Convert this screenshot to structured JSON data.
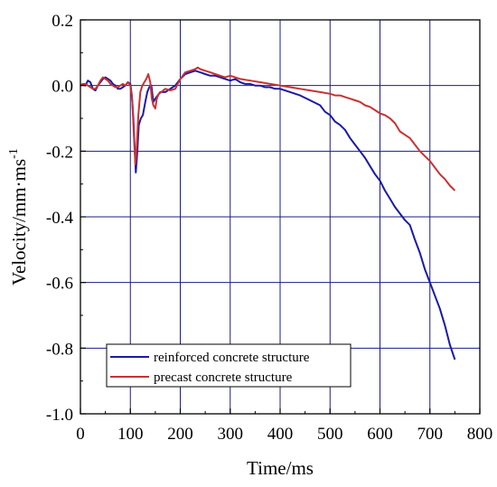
{
  "chart_data": {
    "type": "line",
    "xlabel": "Time/ms",
    "ylabel": "Velocity/mm·ms",
    "ylabel_superscript": "-1",
    "xlim": [
      0,
      800
    ],
    "ylim": [
      -1.0,
      0.2
    ],
    "x_ticks": [
      "0",
      "100",
      "200",
      "300",
      "400",
      "500",
      "600",
      "700",
      "800"
    ],
    "y_ticks": [
      "0.2",
      "0.0",
      "-0.2",
      "-0.4",
      "-0.6",
      "-0.8",
      "-1.0"
    ],
    "grid": true,
    "legend_position": "bottom-left",
    "series": [
      {
        "name": "reinforced concrete structure",
        "color": "#1a1aa6",
        "points": [
          [
            0,
            0.0
          ],
          [
            5,
            0.005
          ],
          [
            10,
            0.0
          ],
          [
            15,
            0.015
          ],
          [
            20,
            0.01
          ],
          [
            25,
            -0.01
          ],
          [
            30,
            -0.015
          ],
          [
            35,
            0.0
          ],
          [
            40,
            0.01
          ],
          [
            45,
            0.02
          ],
          [
            50,
            0.025
          ],
          [
            55,
            0.02
          ],
          [
            60,
            0.015
          ],
          [
            65,
            0.005
          ],
          [
            70,
            0.0
          ],
          [
            75,
            -0.01
          ],
          [
            80,
            -0.01
          ],
          [
            85,
            -0.005
          ],
          [
            90,
            0.0
          ],
          [
            95,
            0.01
          ],
          [
            100,
            0.005
          ],
          [
            103,
            -0.03
          ],
          [
            106,
            -0.1
          ],
          [
            109,
            -0.2
          ],
          [
            111,
            -0.265
          ],
          [
            114,
            -0.2
          ],
          [
            117,
            -0.12
          ],
          [
            121,
            -0.1
          ],
          [
            125,
            -0.09
          ],
          [
            130,
            -0.05
          ],
          [
            134,
            -0.02
          ],
          [
            138,
            -0.005
          ],
          [
            142,
            0.0
          ],
          [
            146,
            -0.05
          ],
          [
            150,
            -0.04
          ],
          [
            155,
            -0.03
          ],
          [
            160,
            -0.02
          ],
          [
            170,
            -0.02
          ],
          [
            180,
            -0.01
          ],
          [
            190,
            0.0
          ],
          [
            200,
            0.02
          ],
          [
            210,
            0.035
          ],
          [
            220,
            0.04
          ],
          [
            230,
            0.045
          ],
          [
            240,
            0.04
          ],
          [
            250,
            0.035
          ],
          [
            260,
            0.03
          ],
          [
            270,
            0.03
          ],
          [
            280,
            0.025
          ],
          [
            290,
            0.02
          ],
          [
            300,
            0.015
          ],
          [
            310,
            0.02
          ],
          [
            320,
            0.01
          ],
          [
            330,
            0.005
          ],
          [
            340,
            0.005
          ],
          [
            350,
            0.0
          ],
          [
            360,
            0.0
          ],
          [
            370,
            -0.005
          ],
          [
            380,
            -0.005
          ],
          [
            390,
            -0.01
          ],
          [
            400,
            -0.01
          ],
          [
            420,
            -0.02
          ],
          [
            440,
            -0.03
          ],
          [
            460,
            -0.045
          ],
          [
            480,
            -0.06
          ],
          [
            490,
            -0.08
          ],
          [
            500,
            -0.09
          ],
          [
            510,
            -0.11
          ],
          [
            520,
            -0.12
          ],
          [
            530,
            -0.135
          ],
          [
            540,
            -0.16
          ],
          [
            550,
            -0.18
          ],
          [
            560,
            -0.2
          ],
          [
            570,
            -0.22
          ],
          [
            580,
            -0.245
          ],
          [
            590,
            -0.27
          ],
          [
            600,
            -0.29
          ],
          [
            610,
            -0.32
          ],
          [
            620,
            -0.345
          ],
          [
            630,
            -0.37
          ],
          [
            640,
            -0.39
          ],
          [
            650,
            -0.41
          ],
          [
            660,
            -0.425
          ],
          [
            670,
            -0.47
          ],
          [
            680,
            -0.51
          ],
          [
            690,
            -0.56
          ],
          [
            700,
            -0.6
          ],
          [
            710,
            -0.64
          ],
          [
            720,
            -0.68
          ],
          [
            730,
            -0.73
          ],
          [
            740,
            -0.79
          ],
          [
            750,
            -0.835
          ]
        ]
      },
      {
        "name": "precast concrete structure",
        "color": "#c83232",
        "points": [
          [
            0,
            0.0
          ],
          [
            5,
            0.005
          ],
          [
            10,
            0.005
          ],
          [
            15,
            0.0
          ],
          [
            20,
            -0.005
          ],
          [
            25,
            -0.01
          ],
          [
            30,
            -0.01
          ],
          [
            35,
            0.0
          ],
          [
            40,
            0.015
          ],
          [
            45,
            0.025
          ],
          [
            50,
            0.02
          ],
          [
            55,
            0.015
          ],
          [
            60,
            0.005
          ],
          [
            65,
            0.0
          ],
          [
            70,
            -0.005
          ],
          [
            75,
            -0.005
          ],
          [
            80,
            0.0
          ],
          [
            85,
            0.005
          ],
          [
            90,
            0.0
          ],
          [
            95,
            0.01
          ],
          [
            100,
            0.0
          ],
          [
            104,
            -0.05
          ],
          [
            107,
            -0.15
          ],
          [
            110,
            -0.24
          ],
          [
            113,
            -0.18
          ],
          [
            116,
            -0.09
          ],
          [
            120,
            -0.02
          ],
          [
            124,
            0.0
          ],
          [
            128,
            0.01
          ],
          [
            132,
            0.02
          ],
          [
            136,
            0.035
          ],
          [
            140,
            0.01
          ],
          [
            143,
            -0.04
          ],
          [
            146,
            -0.06
          ],
          [
            150,
            -0.07
          ],
          [
            153,
            -0.04
          ],
          [
            157,
            -0.025
          ],
          [
            162,
            -0.02
          ],
          [
            170,
            -0.01
          ],
          [
            180,
            -0.015
          ],
          [
            190,
            -0.01
          ],
          [
            200,
            0.02
          ],
          [
            210,
            0.04
          ],
          [
            220,
            0.045
          ],
          [
            230,
            0.05
          ],
          [
            235,
            0.055
          ],
          [
            240,
            0.05
          ],
          [
            250,
            0.045
          ],
          [
            260,
            0.04
          ],
          [
            270,
            0.035
          ],
          [
            280,
            0.03
          ],
          [
            290,
            0.025
          ],
          [
            300,
            0.03
          ],
          [
            310,
            0.025
          ],
          [
            320,
            0.02
          ],
          [
            340,
            0.015
          ],
          [
            360,
            0.01
          ],
          [
            380,
            0.005
          ],
          [
            400,
            0.0
          ],
          [
            420,
            -0.005
          ],
          [
            440,
            -0.01
          ],
          [
            460,
            -0.015
          ],
          [
            480,
            -0.02
          ],
          [
            500,
            -0.025
          ],
          [
            510,
            -0.03
          ],
          [
            520,
            -0.03
          ],
          [
            530,
            -0.035
          ],
          [
            540,
            -0.04
          ],
          [
            550,
            -0.045
          ],
          [
            560,
            -0.05
          ],
          [
            570,
            -0.06
          ],
          [
            580,
            -0.065
          ],
          [
            590,
            -0.075
          ],
          [
            600,
            -0.085
          ],
          [
            610,
            -0.09
          ],
          [
            620,
            -0.1
          ],
          [
            630,
            -0.115
          ],
          [
            640,
            -0.14
          ],
          [
            650,
            -0.15
          ],
          [
            660,
            -0.16
          ],
          [
            670,
            -0.18
          ],
          [
            680,
            -0.2
          ],
          [
            690,
            -0.215
          ],
          [
            700,
            -0.23
          ],
          [
            710,
            -0.25
          ],
          [
            720,
            -0.27
          ],
          [
            730,
            -0.285
          ],
          [
            740,
            -0.305
          ],
          [
            750,
            -0.32
          ]
        ]
      }
    ]
  }
}
